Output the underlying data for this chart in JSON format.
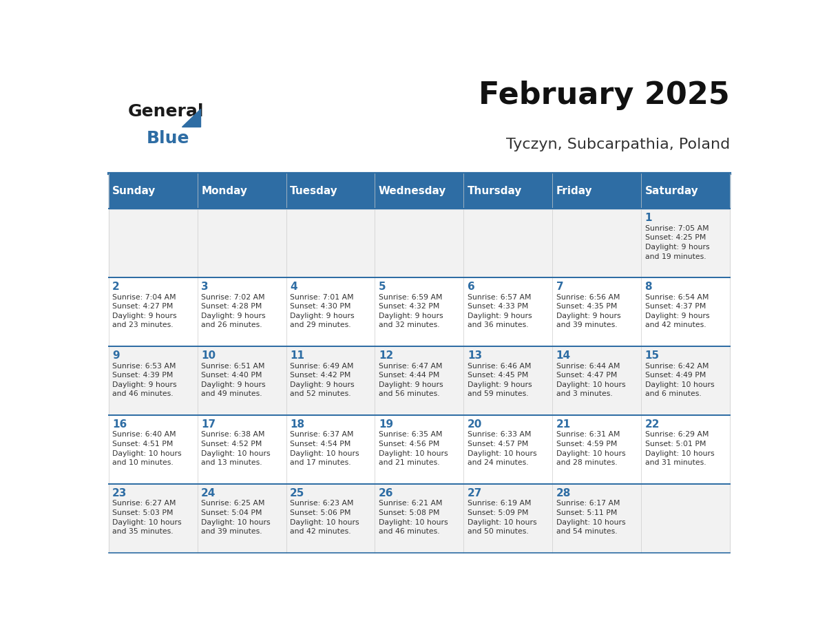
{
  "title": "February 2025",
  "subtitle": "Tyczyn, Subcarpathia, Poland",
  "header_bg": "#2E6DA4",
  "header_text": "#FFFFFF",
  "day_names": [
    "Sunday",
    "Monday",
    "Tuesday",
    "Wednesday",
    "Thursday",
    "Friday",
    "Saturday"
  ],
  "row_bg_odd": "#F2F2F2",
  "row_bg_even": "#FFFFFF",
  "cell_text_color": "#333333",
  "day_num_color": "#2E6DA4",
  "top_line_color": "#2E6DA4",
  "calendar": [
    [
      {
        "day": null,
        "info": null
      },
      {
        "day": null,
        "info": null
      },
      {
        "day": null,
        "info": null
      },
      {
        "day": null,
        "info": null
      },
      {
        "day": null,
        "info": null
      },
      {
        "day": null,
        "info": null
      },
      {
        "day": 1,
        "info": "Sunrise: 7:05 AM\nSunset: 4:25 PM\nDaylight: 9 hours\nand 19 minutes."
      }
    ],
    [
      {
        "day": 2,
        "info": "Sunrise: 7:04 AM\nSunset: 4:27 PM\nDaylight: 9 hours\nand 23 minutes."
      },
      {
        "day": 3,
        "info": "Sunrise: 7:02 AM\nSunset: 4:28 PM\nDaylight: 9 hours\nand 26 minutes."
      },
      {
        "day": 4,
        "info": "Sunrise: 7:01 AM\nSunset: 4:30 PM\nDaylight: 9 hours\nand 29 minutes."
      },
      {
        "day": 5,
        "info": "Sunrise: 6:59 AM\nSunset: 4:32 PM\nDaylight: 9 hours\nand 32 minutes."
      },
      {
        "day": 6,
        "info": "Sunrise: 6:57 AM\nSunset: 4:33 PM\nDaylight: 9 hours\nand 36 minutes."
      },
      {
        "day": 7,
        "info": "Sunrise: 6:56 AM\nSunset: 4:35 PM\nDaylight: 9 hours\nand 39 minutes."
      },
      {
        "day": 8,
        "info": "Sunrise: 6:54 AM\nSunset: 4:37 PM\nDaylight: 9 hours\nand 42 minutes."
      }
    ],
    [
      {
        "day": 9,
        "info": "Sunrise: 6:53 AM\nSunset: 4:39 PM\nDaylight: 9 hours\nand 46 minutes."
      },
      {
        "day": 10,
        "info": "Sunrise: 6:51 AM\nSunset: 4:40 PM\nDaylight: 9 hours\nand 49 minutes."
      },
      {
        "day": 11,
        "info": "Sunrise: 6:49 AM\nSunset: 4:42 PM\nDaylight: 9 hours\nand 52 minutes."
      },
      {
        "day": 12,
        "info": "Sunrise: 6:47 AM\nSunset: 4:44 PM\nDaylight: 9 hours\nand 56 minutes."
      },
      {
        "day": 13,
        "info": "Sunrise: 6:46 AM\nSunset: 4:45 PM\nDaylight: 9 hours\nand 59 minutes."
      },
      {
        "day": 14,
        "info": "Sunrise: 6:44 AM\nSunset: 4:47 PM\nDaylight: 10 hours\nand 3 minutes."
      },
      {
        "day": 15,
        "info": "Sunrise: 6:42 AM\nSunset: 4:49 PM\nDaylight: 10 hours\nand 6 minutes."
      }
    ],
    [
      {
        "day": 16,
        "info": "Sunrise: 6:40 AM\nSunset: 4:51 PM\nDaylight: 10 hours\nand 10 minutes."
      },
      {
        "day": 17,
        "info": "Sunrise: 6:38 AM\nSunset: 4:52 PM\nDaylight: 10 hours\nand 13 minutes."
      },
      {
        "day": 18,
        "info": "Sunrise: 6:37 AM\nSunset: 4:54 PM\nDaylight: 10 hours\nand 17 minutes."
      },
      {
        "day": 19,
        "info": "Sunrise: 6:35 AM\nSunset: 4:56 PM\nDaylight: 10 hours\nand 21 minutes."
      },
      {
        "day": 20,
        "info": "Sunrise: 6:33 AM\nSunset: 4:57 PM\nDaylight: 10 hours\nand 24 minutes."
      },
      {
        "day": 21,
        "info": "Sunrise: 6:31 AM\nSunset: 4:59 PM\nDaylight: 10 hours\nand 28 minutes."
      },
      {
        "day": 22,
        "info": "Sunrise: 6:29 AM\nSunset: 5:01 PM\nDaylight: 10 hours\nand 31 minutes."
      }
    ],
    [
      {
        "day": 23,
        "info": "Sunrise: 6:27 AM\nSunset: 5:03 PM\nDaylight: 10 hours\nand 35 minutes."
      },
      {
        "day": 24,
        "info": "Sunrise: 6:25 AM\nSunset: 5:04 PM\nDaylight: 10 hours\nand 39 minutes."
      },
      {
        "day": 25,
        "info": "Sunrise: 6:23 AM\nSunset: 5:06 PM\nDaylight: 10 hours\nand 42 minutes."
      },
      {
        "day": 26,
        "info": "Sunrise: 6:21 AM\nSunset: 5:08 PM\nDaylight: 10 hours\nand 46 minutes."
      },
      {
        "day": 27,
        "info": "Sunrise: 6:19 AM\nSunset: 5:09 PM\nDaylight: 10 hours\nand 50 minutes."
      },
      {
        "day": 28,
        "info": "Sunrise: 6:17 AM\nSunset: 5:11 PM\nDaylight: 10 hours\nand 54 minutes."
      },
      {
        "day": null,
        "info": null
      }
    ]
  ],
  "logo_text_general": "General",
  "logo_text_blue": "Blue",
  "logo_general_color": "#1a1a1a",
  "logo_blue_color": "#2E6DA4"
}
